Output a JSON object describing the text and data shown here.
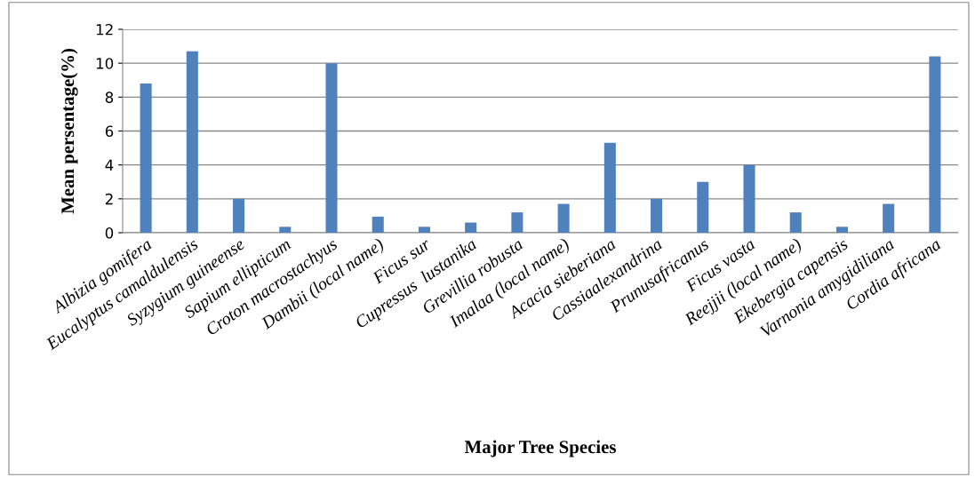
{
  "chart_data": {
    "type": "bar",
    "xlabel": "Major Tree Species",
    "ylabel": "Mean persentage(%)",
    "categories": [
      "Albizia gomifera",
      "Eucalyptus camaldulensis",
      "Syzygium guineense",
      "Sapium ellipticum",
      "Croton macrostachyus",
      "Dambii (local name)",
      "Ficus sur",
      "Cupressus  lustanika",
      "Grevillia robusta",
      "Imalaa (local name)",
      "Acacia sieberiana",
      "Cassiaalexandrina",
      "Prunusafricanus",
      "Ficus vasta",
      "Reejjii (local name)",
      "Ekebergia capensis",
      "Varnonia amygidiliana",
      "Cordia africana"
    ],
    "values": [
      8.8,
      10.7,
      2.0,
      0.35,
      10.0,
      0.95,
      0.35,
      0.6,
      1.2,
      1.7,
      5.3,
      2.0,
      3.0,
      4.0,
      1.2,
      0.35,
      1.7,
      10.4
    ],
    "color": "#4f81bd",
    "ylim": [
      0,
      12
    ],
    "yticks": [
      0,
      2,
      4,
      6,
      8,
      10,
      12
    ],
    "grid": "y"
  }
}
